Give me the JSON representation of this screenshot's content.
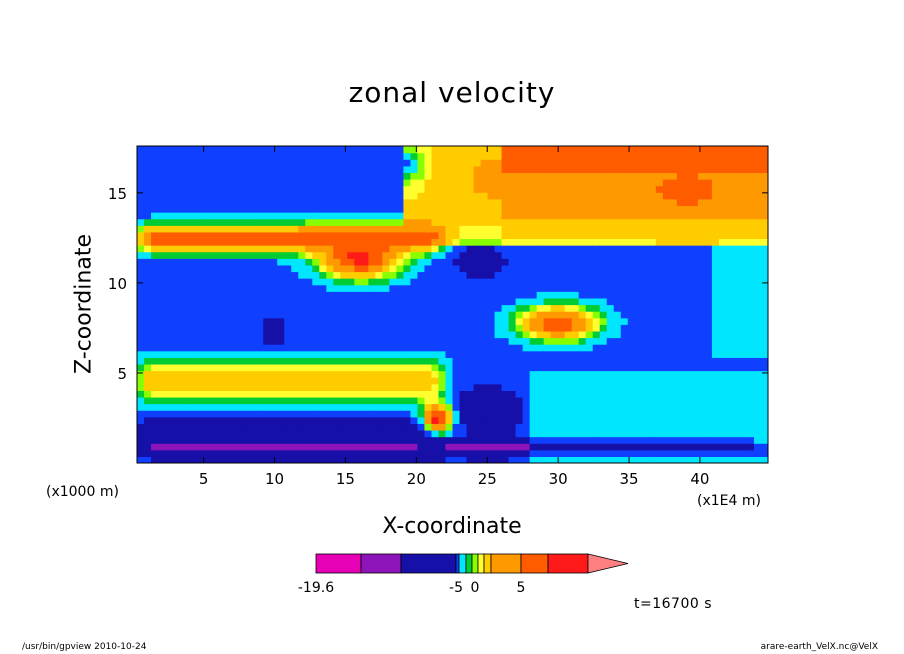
{
  "chart_data": {
    "type": "heatmap",
    "title": "zonal velocity",
    "xlabel": "X-coordinate",
    "ylabel": "Z-coordinate",
    "x_unit_label": "(x1000 m)",
    "x_scale_label": "(x1E4 m)",
    "xlim": [
      0.3,
      44.8
    ],
    "ylim": [
      0.0,
      17.6
    ],
    "x_ticks": [
      5,
      10,
      15,
      20,
      25,
      30,
      35,
      40
    ],
    "y_ticks": [
      5,
      10,
      15
    ],
    "time_label": "t=16700 s",
    "colorbar": {
      "tick_labels": [
        {
          "label": "-19.6",
          "value": -19.6
        },
        {
          "label": "-5",
          "value": -5
        },
        {
          "label": "0",
          "value": 0
        },
        {
          "label": "5",
          "value": 5
        }
      ],
      "levels": [
        -19.6,
        -15.0,
        -10.0,
        -5.0,
        -3.0,
        -1.5,
        -0.5,
        0.5,
        1.5,
        3.0,
        5.0,
        7.0,
        9.5
      ],
      "colors": [
        "#e700b5",
        "#8c14b8",
        "#1610a8",
        "#1040ff",
        "#00e6ff",
        "#00cc33",
        "#88ff00",
        "#ffff30",
        "#ffcc00",
        "#ff9900",
        "#ff5c00",
        "#ff1a1a",
        "#ff8080"
      ],
      "overflow_arrow": "right"
    },
    "field_features": [
      {
        "kind": "band",
        "x0": 0.3,
        "x1": 44.8,
        "z": 0.8,
        "width": 0.6,
        "value": -12
      },
      {
        "kind": "band",
        "x0": 0.3,
        "x1": 22,
        "z": 1.7,
        "width": 1.1,
        "value": -8
      },
      {
        "kind": "band",
        "x0": 0.3,
        "x1": 22,
        "z": 4.6,
        "width": 1.8,
        "value": 3.0
      },
      {
        "kind": "band",
        "x0": 0.3,
        "x1": 22,
        "z": 7.8,
        "width": 1.6,
        "value": -4.0
      },
      {
        "kind": "band",
        "x0": 0.3,
        "x1": 22,
        "z": 12.5,
        "width": 1.2,
        "value": 6.0
      },
      {
        "kind": "band",
        "x0": 0.3,
        "x1": 44.8,
        "z": 9.5,
        "width": 2.0,
        "value": -4.0
      },
      {
        "kind": "band",
        "x0": 0.3,
        "x1": 20,
        "z": 16.6,
        "width": 1.2,
        "value": -4.5
      },
      {
        "kind": "blob",
        "x": 16,
        "z": 11.4,
        "rx": 3.5,
        "rz": 1.4,
        "value": 7.5
      },
      {
        "kind": "blob",
        "x": 30,
        "z": 7.8,
        "rx": 3.5,
        "rz": 1.2,
        "value": 6.5
      },
      {
        "kind": "blob",
        "x": 39,
        "z": 15.2,
        "rx": 4.5,
        "rz": 1.8,
        "value": 6.0
      },
      {
        "kind": "blob",
        "x": 27,
        "z": 15.8,
        "rx": 4.0,
        "rz": 1.6,
        "value": 5.0
      },
      {
        "kind": "blob",
        "x": 25,
        "z": 2.8,
        "rx": 2.5,
        "rz": 1.5,
        "value": -8.0
      },
      {
        "kind": "blob",
        "x": 24.5,
        "z": 11.2,
        "rx": 2.0,
        "rz": 1.0,
        "value": -7.0
      },
      {
        "kind": "blob",
        "x": 21.5,
        "z": 2.5,
        "rx": 1.2,
        "rz": 1.0,
        "value": 8.0
      },
      {
        "kind": "blob",
        "x": 10,
        "z": 7.3,
        "rx": 0.8,
        "rz": 0.9,
        "value": -8.0
      }
    ]
  },
  "footer": {
    "left": "/usr/bin/gpview   2010-10-24",
    "right": "arare-earth_VelX.nc@VelX"
  }
}
